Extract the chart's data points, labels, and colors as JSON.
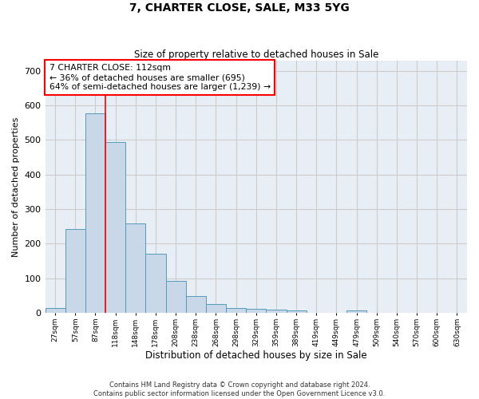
{
  "title": "7, CHARTER CLOSE, SALE, M33 5YG",
  "subtitle": "Size of property relative to detached houses in Sale",
  "xlabel": "Distribution of detached houses by size in Sale",
  "ylabel": "Number of detached properties",
  "bar_color": "#c8d8e8",
  "bar_edge_color": "#5599bb",
  "categories": [
    "27sqm",
    "57sqm",
    "87sqm",
    "118sqm",
    "148sqm",
    "178sqm",
    "208sqm",
    "238sqm",
    "268sqm",
    "298sqm",
    "329sqm",
    "359sqm",
    "389sqm",
    "419sqm",
    "449sqm",
    "479sqm",
    "509sqm",
    "540sqm",
    "570sqm",
    "600sqm",
    "630sqm"
  ],
  "values": [
    13,
    243,
    578,
    495,
    258,
    170,
    92,
    48,
    25,
    13,
    12,
    10,
    8,
    0,
    0,
    7,
    0,
    0,
    0,
    0,
    0
  ],
  "ylim": [
    0,
    730
  ],
  "yticks": [
    0,
    100,
    200,
    300,
    400,
    500,
    600,
    700
  ],
  "annotation_text": "7 CHARTER CLOSE: 112sqm\n← 36% of detached houses are smaller (695)\n64% of semi-detached houses are larger (1,239) →",
  "red_line_x": 2.5,
  "footer": "Contains HM Land Registry data © Crown copyright and database right 2024.\nContains public sector information licensed under the Open Government Licence v3.0.",
  "grid_color": "#cccccc",
  "background_color": "#e8eef5"
}
